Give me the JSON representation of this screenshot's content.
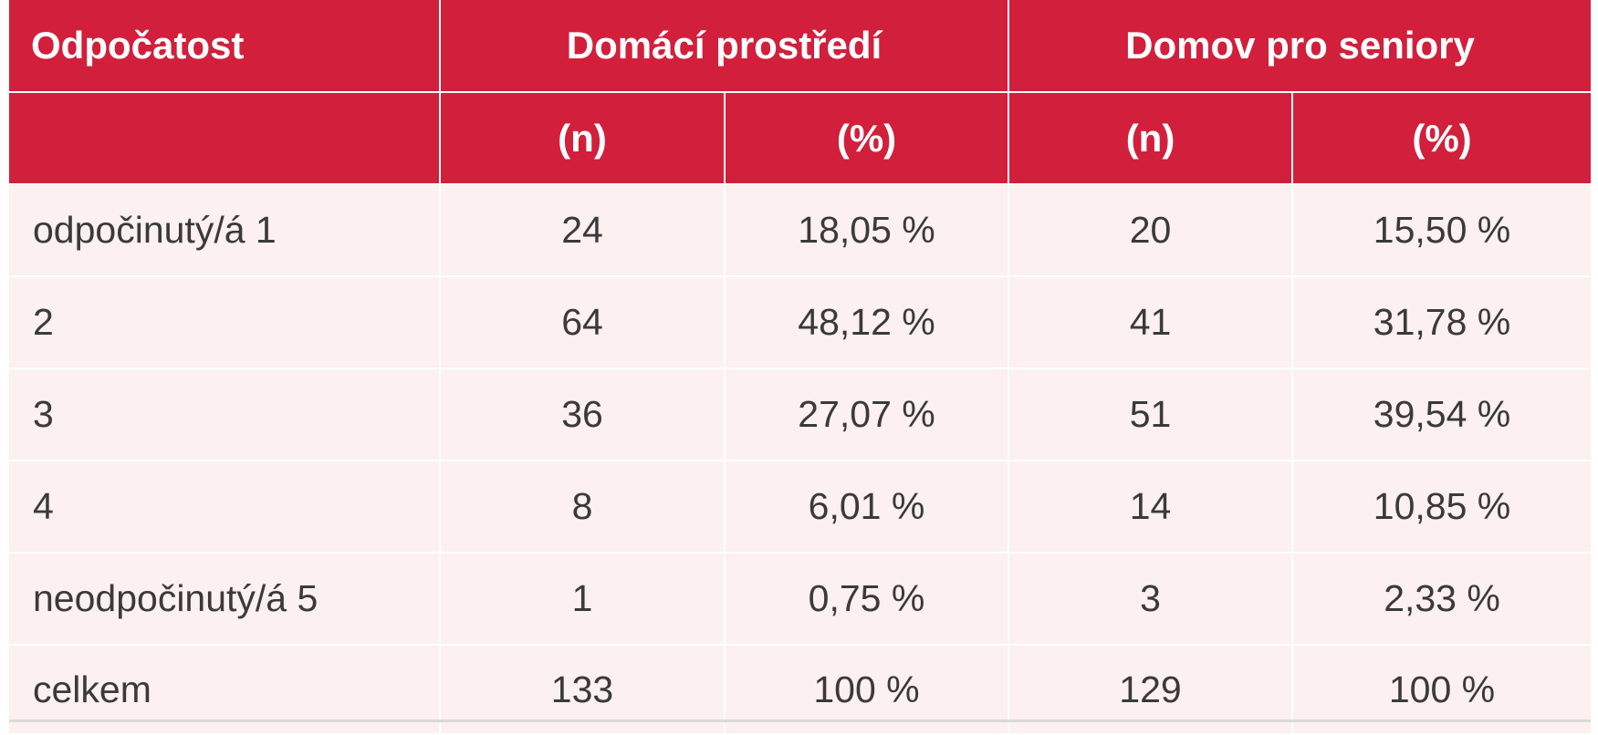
{
  "table": {
    "header": {
      "col0": "Odpočatost",
      "group1": "Domácí prostředí",
      "group2": "Domov pro seniory",
      "sub": [
        "(n)",
        "(%)",
        "(n)",
        "(%)"
      ]
    },
    "rows": [
      {
        "label": "odpočinutý/á 1",
        "cells": [
          "24",
          "18,05 %",
          "20",
          "15,50 %"
        ]
      },
      {
        "label": "2",
        "cells": [
          "64",
          "48,12 %",
          "41",
          "31,78 %"
        ]
      },
      {
        "label": "3",
        "cells": [
          "36",
          "27,07 %",
          "51",
          "39,54 %"
        ]
      },
      {
        "label": "4",
        "cells": [
          "8",
          "6,01 %",
          "14",
          "10,85 %"
        ]
      },
      {
        "label": "neodpočinutý/á 5",
        "cells": [
          "1",
          "0,75 %",
          "3",
          "2,33 %"
        ]
      },
      {
        "label": "celkem",
        "cells": [
          "133",
          "100 %",
          "129",
          "100 %"
        ]
      }
    ]
  },
  "colors": {
    "header_bg": "#d21f3c",
    "body_bg": "#fcf0f0",
    "header_text": "#ffffff",
    "body_text": "#3a3a3a"
  }
}
